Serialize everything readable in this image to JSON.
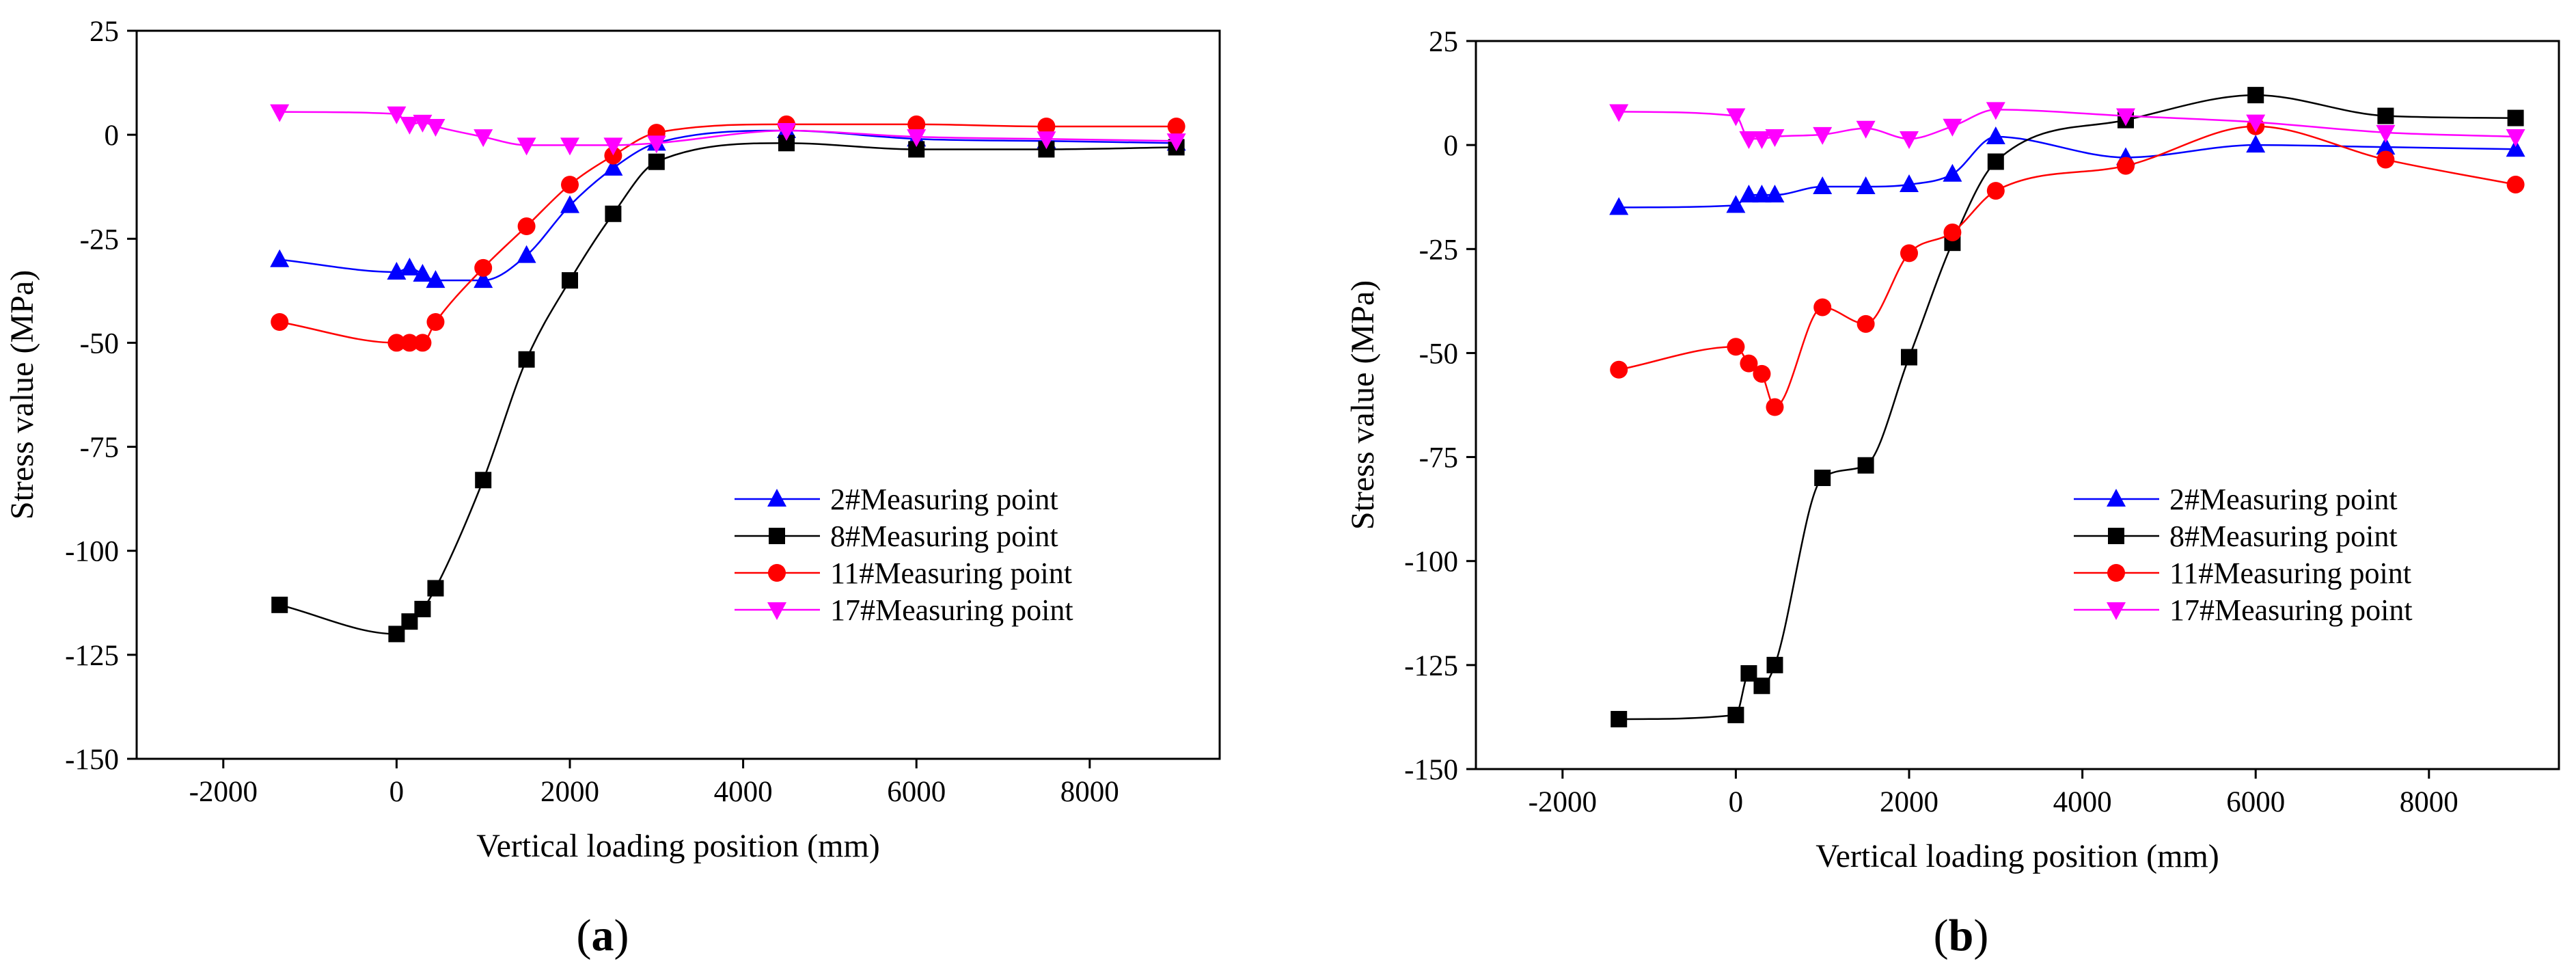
{
  "chart_data": [
    {
      "type": "line",
      "panel": "a",
      "panel_label": "(a)",
      "panel_open": "(",
      "panel_letter": "a",
      "panel_close": ")",
      "xlabel": "Vertical loading position (mm)",
      "ylabel": "Stress value (MPa)",
      "xlim": [
        -3000,
        9500
      ],
      "ylim": [
        -150,
        25
      ],
      "xticks": [
        -2000,
        0,
        2000,
        4000,
        6000,
        8000
      ],
      "yticks": [
        25,
        0,
        -25,
        -50,
        -75,
        -100,
        -125,
        -150
      ],
      "legend_position": "bottom-right",
      "series": [
        {
          "name": "2#Measuring point",
          "color": "#0000ff",
          "marker": "triangle-up",
          "x": [
            -1350,
            0,
            150,
            300,
            450,
            1000,
            1500,
            2000,
            2500,
            3000,
            4500,
            6000,
            7500,
            9000
          ],
          "y": [
            -30,
            -33,
            -32,
            -33.5,
            -35,
            -35,
            -29,
            -17,
            -8,
            -2,
            1,
            -1,
            -1.5,
            -2
          ]
        },
        {
          "name": "8#Measuring point",
          "color": "#000000",
          "marker": "square",
          "x": [
            -1350,
            0,
            150,
            300,
            450,
            1000,
            1500,
            2000,
            2500,
            3000,
            4500,
            6000,
            7500,
            9000
          ],
          "y": [
            -113,
            -120,
            -117,
            -114,
            -109,
            -83,
            -54,
            -35,
            -19,
            -6.5,
            -2,
            -3.5,
            -3.5,
            -3
          ]
        },
        {
          "name": "11#Measuring point",
          "color": "#ff0000",
          "marker": "circle",
          "x": [
            -1350,
            0,
            150,
            300,
            450,
            1000,
            1500,
            2000,
            2500,
            3000,
            4500,
            6000,
            7500,
            9000
          ],
          "y": [
            -45,
            -50,
            -50,
            -50,
            -45,
            -32,
            -22,
            -12,
            -5,
            0.5,
            2.5,
            2.5,
            2,
            2
          ]
        },
        {
          "name": "17#Measuring point",
          "color": "#ff00ff",
          "marker": "triangle-down",
          "x": [
            -1350,
            0,
            150,
            300,
            450,
            1000,
            1500,
            2000,
            2500,
            3000,
            4500,
            6000,
            7500,
            9000
          ],
          "y": [
            5.5,
            5,
            2.5,
            3,
            2,
            -0.5,
            -2.5,
            -2.5,
            -2.5,
            -2,
            1,
            -0.5,
            -1,
            -1.5
          ]
        }
      ]
    },
    {
      "type": "line",
      "panel": "b",
      "panel_label": "(b)",
      "panel_open": "(",
      "panel_letter": "b",
      "panel_close": ")",
      "xlabel": "Vertical loading position (mm)",
      "ylabel": "Stress value (MPa)",
      "xlim": [
        -3000,
        9500
      ],
      "ylim": [
        -150,
        25
      ],
      "xticks": [
        -2000,
        0,
        2000,
        4000,
        6000,
        8000
      ],
      "yticks": [
        25,
        0,
        -25,
        -50,
        -75,
        -100,
        -125,
        -150
      ],
      "legend_position": "bottom-right",
      "series": [
        {
          "name": "2#Measuring point",
          "color": "#0000ff",
          "marker": "triangle-up",
          "x": [
            -1350,
            0,
            150,
            300,
            450,
            1000,
            1500,
            2000,
            2500,
            3000,
            4500,
            6000,
            7500,
            9000
          ],
          "y": [
            -15,
            -14.5,
            -12,
            -12,
            -12,
            -10,
            -10,
            -9.5,
            -7,
            2,
            -3,
            0,
            -0.5,
            -1
          ]
        },
        {
          "name": "8#Measuring point",
          "color": "#000000",
          "marker": "square",
          "x": [
            -1350,
            0,
            150,
            300,
            450,
            1000,
            1500,
            2000,
            2500,
            3000,
            4500,
            6000,
            7500,
            9000
          ],
          "y": [
            -138,
            -137,
            -127,
            -130,
            -125,
            -80,
            -77,
            -51,
            -23.5,
            -4,
            6,
            12,
            7,
            6.5
          ]
        },
        {
          "name": "11#Measuring point",
          "color": "#ff0000",
          "marker": "circle",
          "x": [
            -1350,
            0,
            150,
            300,
            450,
            1000,
            1500,
            2000,
            2500,
            3000,
            4500,
            6000,
            7500,
            9000
          ],
          "y": [
            -54,
            -48.5,
            -52.5,
            -55,
            -63,
            -39,
            -43,
            -26,
            -21,
            -11,
            -5,
            4.5,
            -3.5,
            -9.5
          ]
        },
        {
          "name": "17#Measuring point",
          "color": "#ff00ff",
          "marker": "triangle-down",
          "x": [
            -1350,
            0,
            150,
            300,
            450,
            1000,
            1500,
            2000,
            2500,
            3000,
            4500,
            6000,
            7500,
            9000
          ],
          "y": [
            8,
            7,
            1.5,
            1.5,
            2,
            2.5,
            4,
            1.5,
            4.5,
            8.5,
            7,
            5.5,
            3,
            2
          ]
        }
      ]
    }
  ]
}
